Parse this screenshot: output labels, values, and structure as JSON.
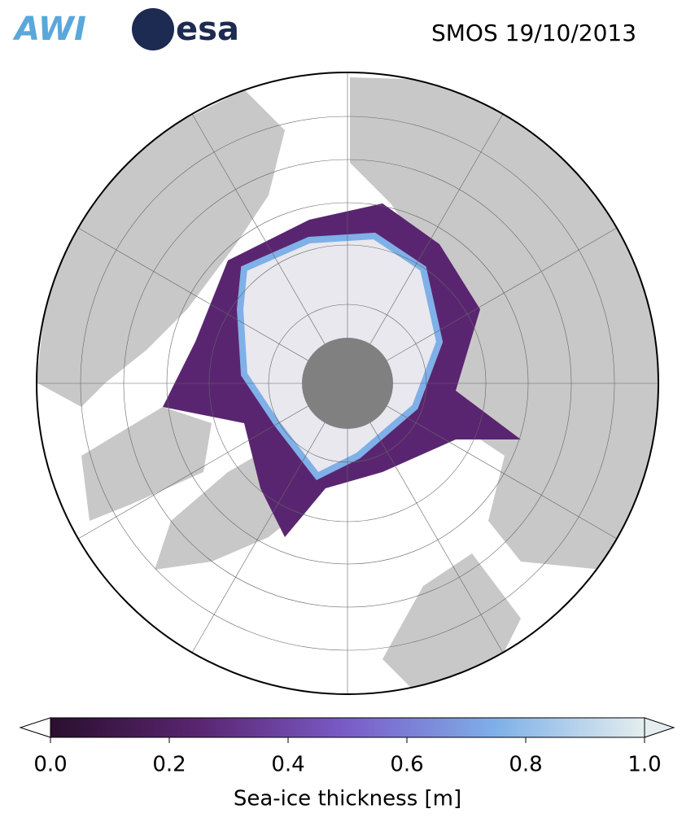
{
  "header": {
    "logos": [
      "AWI",
      "esa"
    ],
    "title": "SMOS 19/10/2013"
  },
  "colorbar": {
    "label": "Sea-ice thickness [m]",
    "range": [
      0,
      1
    ],
    "colors": [
      "#2a0f2e",
      "#5a2570",
      "#7a5cc8",
      "#7fb0e8",
      "#e4eeee"
    ],
    "ticks": [
      {
        "value": 0,
        "label": "0.0"
      },
      {
        "value": 0.2,
        "label": "0.2"
      },
      {
        "value": 0.4,
        "label": "0.4"
      },
      {
        "value": 0.6,
        "label": "0.6"
      },
      {
        "value": 0.8,
        "label": "0.8"
      },
      {
        "value": 1,
        "label": "1.0"
      }
    ]
  }
}
